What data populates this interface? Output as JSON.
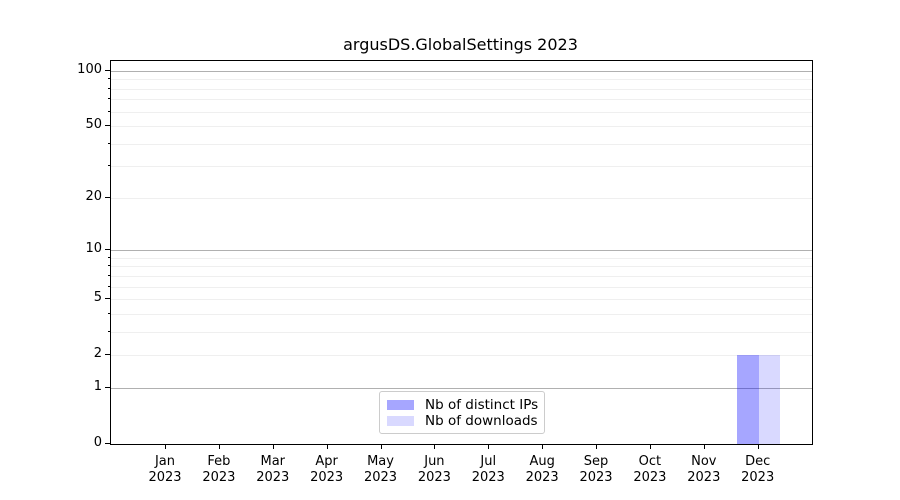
{
  "title": "argusDS.GlobalSettings 2023",
  "chart_data": {
    "type": "bar",
    "title": "argusDS.GlobalSettings 2023",
    "categories": [
      {
        "month": "Jan",
        "year": "2023"
      },
      {
        "month": "Feb",
        "year": "2023"
      },
      {
        "month": "Mar",
        "year": "2023"
      },
      {
        "month": "Apr",
        "year": "2023"
      },
      {
        "month": "May",
        "year": "2023"
      },
      {
        "month": "Jun",
        "year": "2023"
      },
      {
        "month": "Jul",
        "year": "2023"
      },
      {
        "month": "Aug",
        "year": "2023"
      },
      {
        "month": "Sep",
        "year": "2023"
      },
      {
        "month": "Oct",
        "year": "2023"
      },
      {
        "month": "Nov",
        "year": "2023"
      },
      {
        "month": "Dec",
        "year": "2023"
      }
    ],
    "series": [
      {
        "name": "Nb of distinct IPs",
        "color": "#a6a6ff",
        "fill": "rgba(0,0,255,0.35)",
        "values": [
          0,
          0,
          0,
          0,
          0,
          0,
          0,
          0,
          0,
          0,
          0,
          2
        ]
      },
      {
        "name": "Nb of downloads",
        "color": "#d9d9ff",
        "fill": "rgba(0,0,255,0.15)",
        "values": [
          0,
          0,
          0,
          0,
          0,
          0,
          0,
          0,
          0,
          0,
          0,
          2
        ]
      }
    ],
    "yscale": {
      "type": "log1p",
      "max": 113.3
    },
    "ylim": [
      0,
      113.3
    ],
    "y_tick_labels": [
      0,
      1,
      2,
      5,
      10,
      20,
      50,
      100
    ],
    "y_major_gridlines": [
      1,
      10,
      100
    ],
    "y_minor_gridlines": [
      2,
      3,
      4,
      5,
      6,
      7,
      8,
      9,
      20,
      30,
      40,
      50,
      60,
      70,
      80,
      90
    ],
    "xlabel": "",
    "ylabel": "",
    "grid": true,
    "legend_position": "lower center",
    "colors": {
      "axis": "#000000",
      "major_grid": "#b0b0b0",
      "minor_grid": "#efefef",
      "background": "#ffffff"
    }
  }
}
